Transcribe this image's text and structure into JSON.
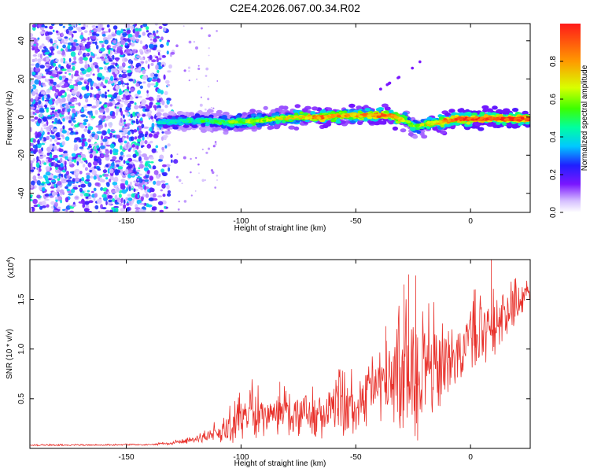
{
  "title": "C2E4.2026.067.00.34.R02",
  "colors": {
    "snr_line": "#e8302a",
    "speckle": "#6a1fe0",
    "colormap": [
      "#ffffff",
      "#d6c0ff",
      "#7a16ff",
      "#1f1fff",
      "#00c8ff",
      "#00ffa0",
      "#3cff00",
      "#d8ff00",
      "#ff9a00",
      "#ff1a1a"
    ]
  },
  "chart_data": [
    {
      "type": "heatmap",
      "xlabel": "Height of straight line (km)",
      "ylabel": "Frequency (Hz)",
      "xlim": [
        -192,
        26
      ],
      "ylim": [
        -50,
        49
      ],
      "xticks": [
        {
          "value": -150,
          "label": "-150"
        },
        {
          "value": -100,
          "label": "-100"
        },
        {
          "value": -50,
          "label": "-50"
        },
        {
          "value": 0,
          "label": "0"
        }
      ],
      "yticks": [
        {
          "value": 40,
          "label": "40"
        },
        {
          "value": 20,
          "label": "20"
        },
        {
          "value": 0,
          "label": "0"
        },
        {
          "value": -20,
          "label": "-20"
        },
        {
          "value": -40,
          "label": "-40"
        }
      ],
      "colorbar": {
        "label": "Normalized spectral amplitude",
        "range": [
          0,
          1
        ],
        "ticks": [
          {
            "value": 0.0,
            "label": "0.0"
          },
          {
            "value": 0.2,
            "label": "0.2"
          },
          {
            "value": 0.4,
            "label": "0.4"
          },
          {
            "value": 0.6,
            "label": "0.6"
          },
          {
            "value": 0.8,
            "label": "0.8"
          }
        ]
      },
      "noise_region": {
        "x": [
          -192,
          -128
        ],
        "y": [
          -50,
          49
        ],
        "amplitude": [
          0.05,
          0.45
        ]
      },
      "ridge": {
        "x": [
          -136,
          -125,
          -115,
          -105,
          -95,
          -85,
          -75,
          -65,
          -55,
          -45,
          -35,
          -28,
          -25,
          -20,
          -15,
          -10,
          -5,
          0,
          5,
          10,
          15,
          20,
          26
        ],
        "frequency": [
          -3,
          -2,
          -2,
          -3,
          -2,
          -1,
          0,
          0,
          1,
          1,
          1,
          -2,
          -5,
          -4,
          -3,
          -2,
          -1,
          -1,
          -1,
          -1,
          -1,
          -1,
          -1
        ],
        "amplitude": [
          0.4,
          0.45,
          0.5,
          0.55,
          0.6,
          0.65,
          0.7,
          0.85,
          0.75,
          0.8,
          0.85,
          0.6,
          0.55,
          0.65,
          0.75,
          0.85,
          0.9,
          0.95,
          0.95,
          0.95,
          0.97,
          0.98,
          1.0
        ]
      },
      "secondary_streak": {
        "x": [
          -40,
          -35,
          -27,
          -20
        ],
        "frequency": [
          14,
          18,
          24,
          31
        ],
        "amplitude": 0.15
      }
    },
    {
      "type": "line",
      "xlabel": "Height of straight line (km)",
      "ylabel": "SNR (10 * v/v)",
      "y_multiplier": "(x10",
      "y_multiplier_exp": "4",
      "y_multiplier_close": ")",
      "xlim": [
        -192,
        26
      ],
      "ylim": [
        0,
        19000
      ],
      "xticks": [
        {
          "value": -150,
          "label": "-150"
        },
        {
          "value": -100,
          "label": "-100"
        },
        {
          "value": -50,
          "label": "-50"
        },
        {
          "value": 0,
          "label": "0"
        }
      ],
      "yticks": [
        {
          "value": 5000,
          "label": "0.5"
        },
        {
          "value": 10000,
          "label": "1.0"
        },
        {
          "value": 15000,
          "label": "1.5"
        }
      ],
      "series": [
        {
          "envelope": {
            "x": [
              -192,
              -140,
              -130,
              -120,
              -110,
              -105,
              -100,
              -90,
              -80,
              -70,
              -65,
              -60,
              -50,
              -40,
              -35,
              -30,
              -25,
              -20,
              -10,
              -5,
              0,
              10,
              20,
              26
            ],
            "base": [
              300,
              350,
              500,
              800,
              1300,
              1800,
              2500,
              2700,
              3000,
              2600,
              2800,
              3200,
              3500,
              4800,
              6000,
              6000,
              6500,
              6500,
              7800,
              8800,
              9800,
              11500,
              14000,
              15800
            ],
            "amp": [
              80,
              100,
              200,
              500,
              1200,
              2500,
              2800,
              3200,
              3200,
              3000,
              3400,
              3500,
              4000,
              4500,
              5500,
              8000,
              9500,
              6500,
              5000,
              4000,
              4500,
              4000,
              2500,
              1500
            ]
          },
          "spikes": [
            {
              "x": -29,
              "value": 16500
            },
            {
              "x": -27,
              "value": 17500
            },
            {
              "x": -24,
              "value": 17400
            },
            {
              "x": -23,
              "value": 800
            },
            {
              "x": -37,
              "value": 12300
            },
            {
              "x": 2,
              "value": 16000
            },
            {
              "x": 9,
              "value": 19000
            },
            {
              "x": -83,
              "value": 6700
            },
            {
              "x": -100,
              "value": 4500
            },
            {
              "x": -58,
              "value": 6300
            }
          ],
          "x_step_km": 0.22
        }
      ]
    }
  ]
}
